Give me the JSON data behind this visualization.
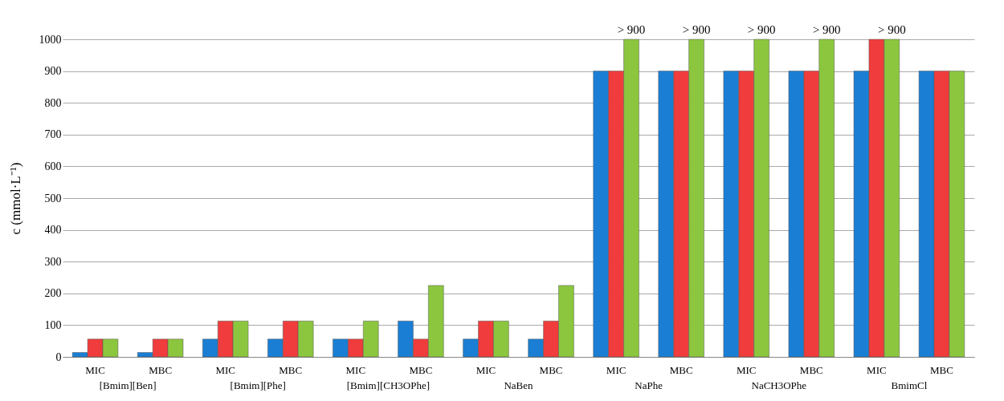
{
  "chart_data": {
    "type": "bar",
    "ylabel": "c (mmol·L⁻¹)",
    "categories": [
      "MIC",
      "MBC",
      "MIC",
      "MBC",
      "MIC",
      "MBC",
      "MIC",
      "MBC",
      "MIC",
      "MBC",
      "MIC",
      "MBC",
      "MIC",
      "MBC"
    ],
    "series": [
      {
        "color": "#1a7fd4",
        "values": [
          14,
          14,
          56,
          56,
          56,
          113,
          56,
          56,
          900,
          900,
          900,
          900,
          900,
          900
        ]
      },
      {
        "color": "#f03c3c",
        "values": [
          56,
          56,
          113,
          113,
          56,
          56,
          113,
          113,
          900,
          900,
          900,
          900,
          1000,
          900
        ]
      },
      {
        "color": "#8cc63f",
        "values": [
          56,
          56,
          113,
          113,
          113,
          225,
          113,
          225,
          1000,
          1000,
          1000,
          1000,
          1000,
          900
        ],
        "value_labels": [
          null,
          null,
          null,
          null,
          null,
          null,
          null,
          null,
          "> 900",
          "> 900",
          "> 900",
          "> 900",
          "> 900",
          null
        ]
      }
    ],
    "annotations": [
      "[Bmim][Ben]",
      "[Bmim][Phe]",
      "[Bmim][CH3OPhe]",
      "NaBen",
      "NaPhe",
      "NaCH3OPhe",
      "BmimCl"
    ],
    "ylim": [
      0,
      1000
    ],
    "yticks": [
      0,
      100,
      200,
      300,
      400,
      500,
      600,
      700,
      800,
      900,
      1000
    ],
    "grid": "y",
    "legend": false
  }
}
